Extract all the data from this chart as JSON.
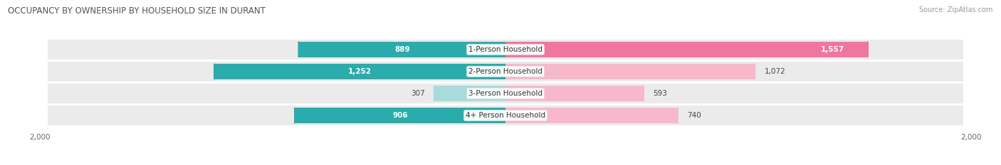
{
  "title": "OCCUPANCY BY OWNERSHIP BY HOUSEHOLD SIZE IN DURANT",
  "source": "Source: ZipAtlas.com",
  "categories": [
    "1-Person Household",
    "2-Person Household",
    "3-Person Household",
    "4+ Person Household"
  ],
  "owner_values": [
    889,
    1252,
    307,
    906
  ],
  "renter_values": [
    1557,
    1072,
    593,
    740
  ],
  "owner_color_dark": "#2AACAC",
  "owner_color_light": "#A8DCDC",
  "renter_color_dark": "#F075A0",
  "renter_color_light": "#F8B8CC",
  "axis_max": 2000,
  "background_color": "#FFFFFF",
  "bar_bg_color": "#EBEBEB",
  "title_fontsize": 8.5,
  "source_fontsize": 7.0,
  "label_fontsize": 7.5,
  "cat_fontsize": 7.5,
  "axis_label_fontsize": 7.5,
  "bar_height": 0.72,
  "value_label_inside_color": "#FFFFFF",
  "value_label_outside_color": "#444444",
  "owner_inside_threshold": 400,
  "renter_inside_threshold": 1300
}
